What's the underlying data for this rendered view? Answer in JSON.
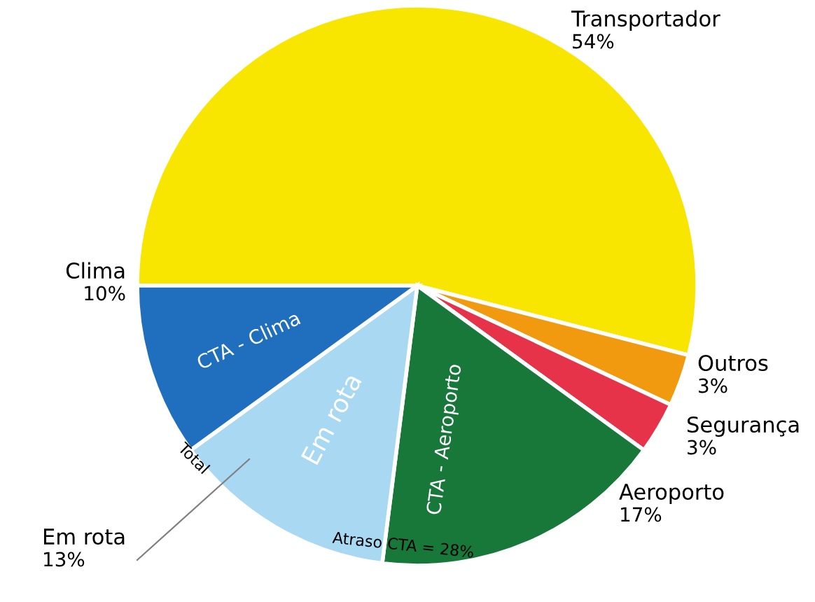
{
  "chart_data": {
    "type": "pie",
    "categories": [
      "Transportador",
      "Outros",
      "Segurança",
      "Aeroporto",
      "Em rota",
      "Clima"
    ],
    "values": [
      54,
      3,
      3,
      17,
      13,
      10
    ],
    "colors": [
      "#f8e600",
      "#f29a0f",
      "#e63349",
      "#17783a",
      "#a9d9f2",
      "#1f6fbe"
    ],
    "value_labels": [
      "54%",
      "3%",
      "3%",
      "17%",
      "13%",
      "10%"
    ],
    "annotations": [
      "CTA - Clima",
      "Em rota",
      "CTA - Aeroporto",
      "Total",
      "Atraso CTA = 28%"
    ],
    "legend": false
  }
}
